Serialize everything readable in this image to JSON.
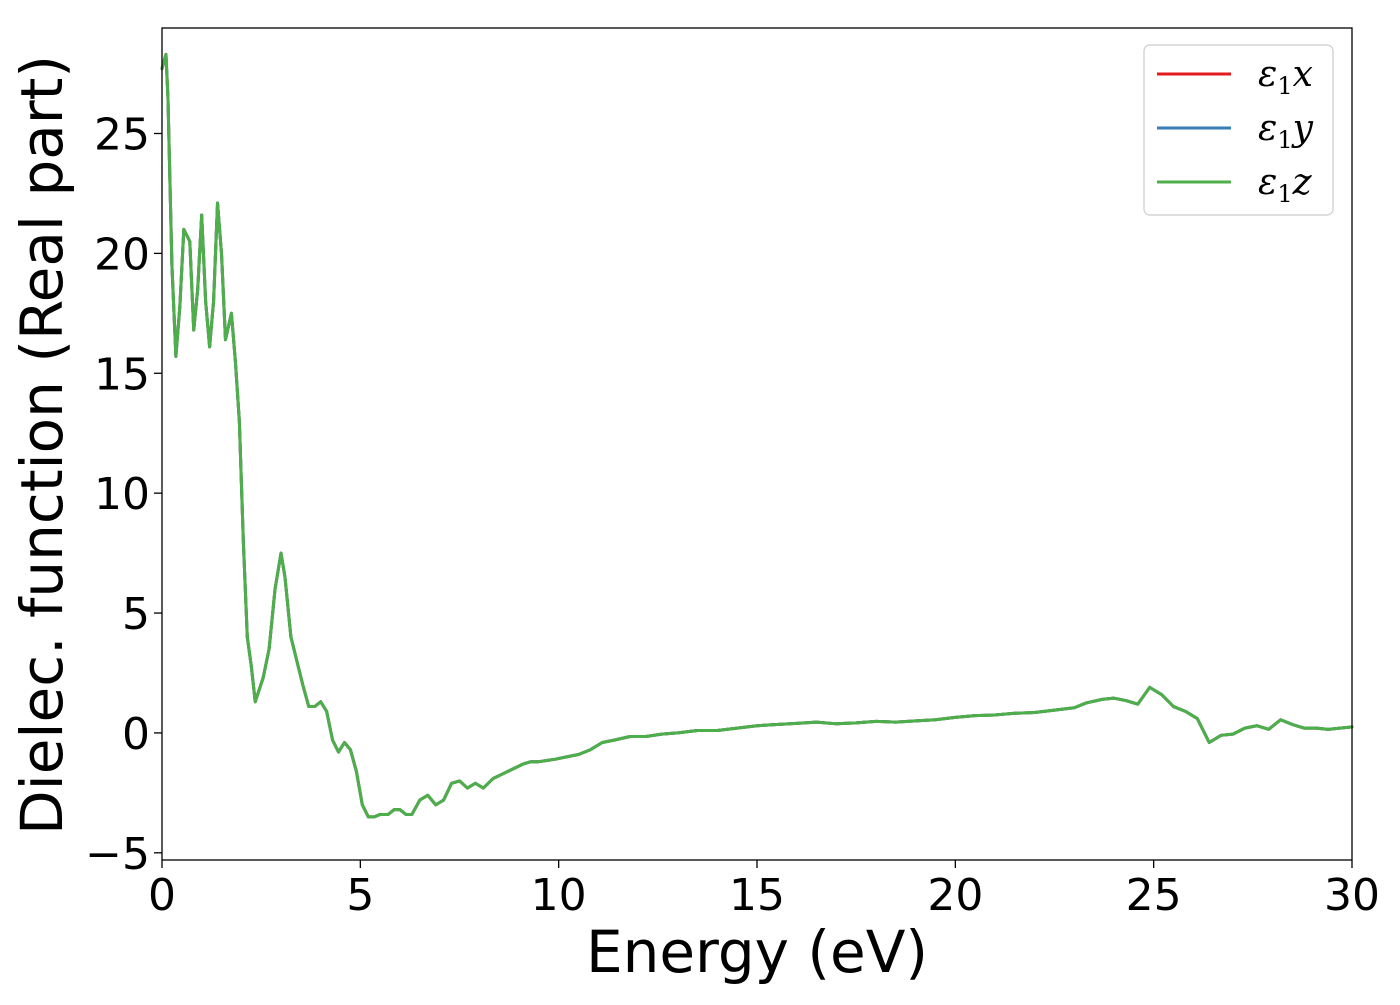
{
  "chart_data": {
    "type": "line",
    "title": "",
    "xlabel": "Energy (eV)",
    "ylabel": "Dielec. function (Real part)",
    "xlim": [
      0,
      30
    ],
    "ylim": [
      -5.3,
      29.4
    ],
    "xticks": [
      0,
      5,
      10,
      15,
      20,
      25,
      30
    ],
    "xtick_labels": [
      "0",
      "5",
      "10",
      "15",
      "20",
      "25",
      "30"
    ],
    "yticks": [
      -5,
      0,
      5,
      10,
      15,
      20,
      25
    ],
    "ytick_labels": [
      "−5",
      "0",
      "5",
      "10",
      "15",
      "20",
      "25"
    ],
    "grid": false,
    "legend_position": "top-right",
    "series": [
      {
        "name": "ε₁x",
        "legend_base": "ε",
        "legend_sub": "1",
        "legend_var": "x",
        "color": "#e41a1c",
        "x": [
          0,
          0.1,
          0.15,
          0.25,
          0.35,
          0.45,
          0.55,
          0.7,
          0.8,
          0.9,
          1.0,
          1.1,
          1.2,
          1.3,
          1.4,
          1.5,
          1.6,
          1.75,
          1.85,
          1.95,
          2.05,
          2.15,
          2.25,
          2.35,
          2.45,
          2.55,
          2.7,
          2.85,
          3.0,
          3.1,
          3.25,
          3.4,
          3.55,
          3.7,
          3.85,
          4.0,
          4.15,
          4.3,
          4.45,
          4.6,
          4.75,
          4.9,
          5.05,
          5.2,
          5.35,
          5.5,
          5.7,
          5.85,
          6.0,
          6.15,
          6.3,
          6.5,
          6.7,
          6.9,
          7.1,
          7.3,
          7.5,
          7.7,
          7.9,
          8.1,
          8.35,
          8.6,
          8.85,
          9.1,
          9.3,
          9.5,
          9.7,
          9.9,
          10.2,
          10.5,
          10.8,
          11.1,
          11.4,
          11.8,
          12.2,
          12.6,
          13.0,
          13.5,
          14.0,
          14.5,
          15.0,
          15.5,
          16.0,
          16.5,
          17.0,
          17.5,
          18.0,
          18.5,
          19.0,
          19.5,
          20.0,
          20.5,
          21.0,
          21.5,
          22.0,
          22.5,
          23.0,
          23.3,
          23.7,
          24.0,
          24.3,
          24.6,
          24.9,
          25.2,
          25.5,
          25.8,
          26.1,
          26.4,
          26.7,
          27.0,
          27.3,
          27.6,
          27.9,
          28.2,
          28.5,
          28.8,
          29.1,
          29.4,
          29.7,
          30.0
        ],
        "y": [
          27.7,
          28.3,
          26.5,
          19.5,
          15.7,
          17.8,
          21.0,
          20.5,
          16.8,
          18.5,
          21.6,
          18.0,
          16.1,
          18.0,
          22.1,
          20.0,
          16.4,
          17.5,
          15.5,
          13.0,
          8.0,
          4.0,
          2.8,
          1.3,
          1.8,
          2.3,
          3.5,
          6.0,
          7.5,
          6.5,
          4.0,
          3.0,
          2.0,
          1.1,
          1.1,
          1.3,
          0.9,
          -0.3,
          -0.8,
          -0.4,
          -0.7,
          -1.6,
          -3.0,
          -3.5,
          -3.5,
          -3.4,
          -3.4,
          -3.2,
          -3.2,
          -3.4,
          -3.4,
          -2.8,
          -2.6,
          -3.0,
          -2.8,
          -2.1,
          -2.0,
          -2.3,
          -2.1,
          -2.3,
          -1.9,
          -1.7,
          -1.5,
          -1.3,
          -1.2,
          -1.2,
          -1.15,
          -1.1,
          -1.0,
          -0.9,
          -0.7,
          -0.4,
          -0.3,
          -0.15,
          -0.15,
          -0.05,
          0.0,
          0.1,
          0.1,
          0.2,
          0.3,
          0.35,
          0.4,
          0.45,
          0.38,
          0.42,
          0.48,
          0.45,
          0.5,
          0.55,
          0.65,
          0.72,
          0.75,
          0.82,
          0.85,
          0.95,
          1.05,
          1.25,
          1.4,
          1.45,
          1.35,
          1.2,
          1.9,
          1.6,
          1.1,
          0.9,
          0.6,
          -0.4,
          -0.1,
          -0.05,
          0.2,
          0.3,
          0.15,
          0.55,
          0.35,
          0.2,
          0.2,
          0.15,
          0.2,
          0.25
        ]
      },
      {
        "name": "ε₁y",
        "legend_base": "ε",
        "legend_sub": "1",
        "legend_var": "y",
        "color": "#377eb8",
        "same_as_series": 0
      },
      {
        "name": "ε₁z",
        "legend_base": "ε",
        "legend_sub": "1",
        "legend_var": "z",
        "color": "#4daf4a",
        "same_as_series": 0
      }
    ]
  }
}
